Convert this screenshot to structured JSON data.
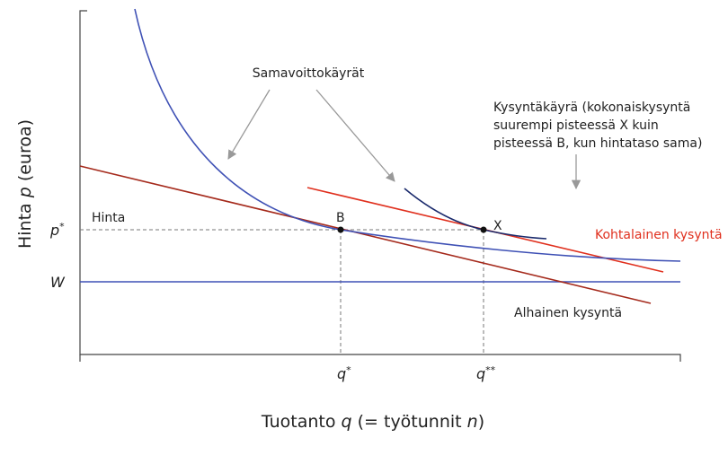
{
  "annotation_isoprofit": "Samavoittokäyrät",
  "annotation_demand": [
    "Kysyntäkäyrä (kokonaiskysyntä",
    "suurempi pisteessä X kuin",
    "pisteessä B, kun hintataso sama)"
  ],
  "curve_labels": {
    "moderate": "Kohtalainen kysyntä",
    "low": "Alhainen kysyntä"
  },
  "price_label": "Hinta",
  "y_ticks": {
    "p_star": {
      "symbol": "p",
      "sup": "*"
    },
    "w": "W"
  },
  "points": {
    "b": "B",
    "x": "X"
  },
  "x_ticks": {
    "q_star": {
      "symbol": "q",
      "sup": "*"
    },
    "q_star_star": {
      "symbol": "q",
      "sup": "**"
    }
  },
  "y_axis_label": [
    "Hinta ",
    "p",
    " (euroa)"
  ],
  "x_axis_label": [
    "Tuotanto ",
    "q",
    " (= työtunnit ",
    "n",
    ")"
  ]
}
